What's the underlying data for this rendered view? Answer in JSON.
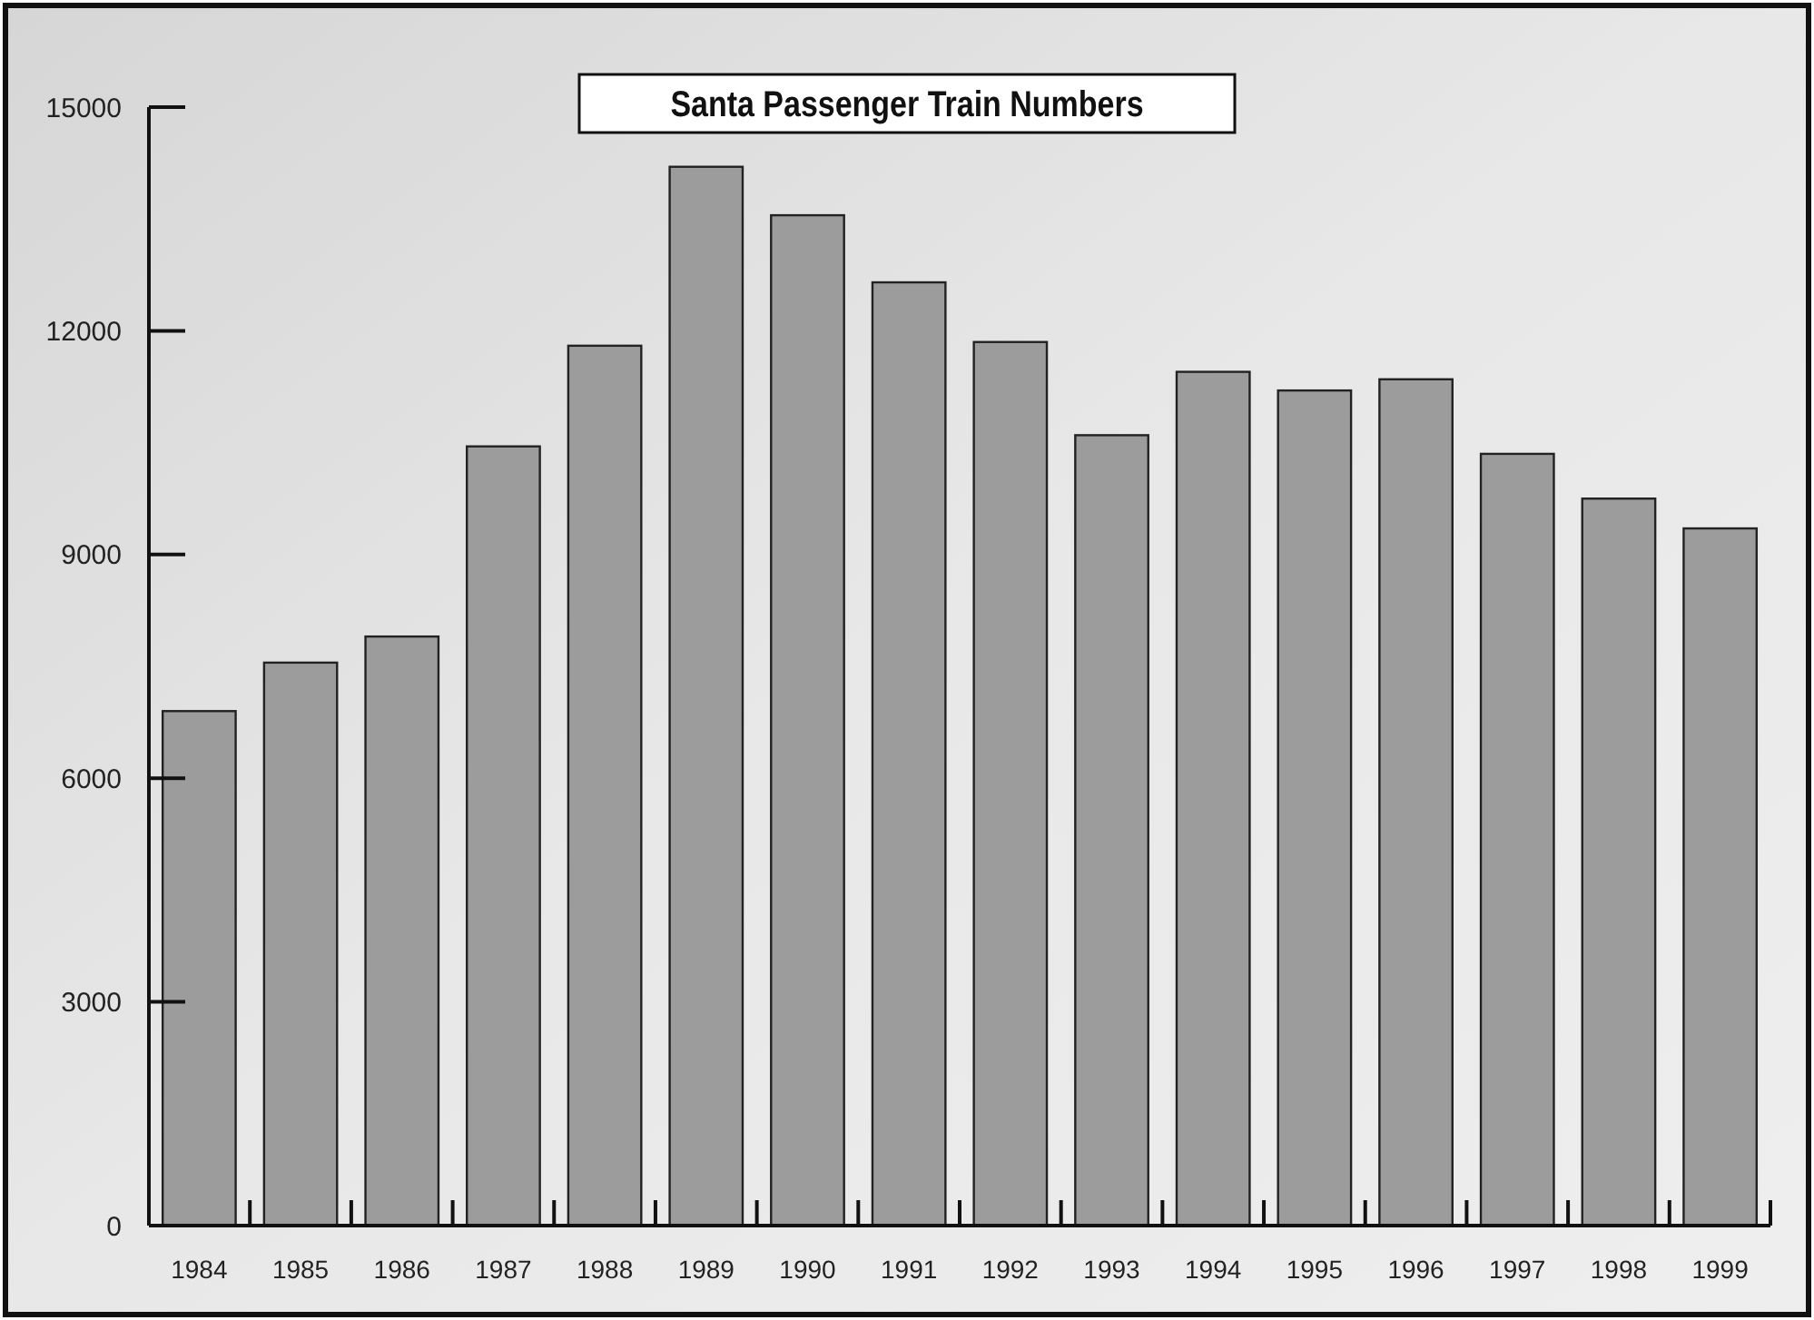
{
  "chart_data": {
    "type": "bar",
    "title": "Santa Passenger Train Numbers",
    "categories": [
      "1984",
      "1985",
      "1986",
      "1987",
      "1988",
      "1989",
      "1990",
      "1991",
      "1992",
      "1993",
      "1994",
      "1995",
      "1996",
      "1997",
      "1998",
      "1999"
    ],
    "values": [
      6900,
      7550,
      7900,
      10450,
      11800,
      14200,
      13550,
      12650,
      11850,
      10600,
      11450,
      11200,
      11350,
      10350,
      9750,
      9350
    ],
    "color": "#9c9c9c",
    "ylim": [
      0,
      15000
    ],
    "yticks": [
      0,
      3000,
      6000,
      9000,
      12000,
      15000
    ],
    "grid": false
  }
}
